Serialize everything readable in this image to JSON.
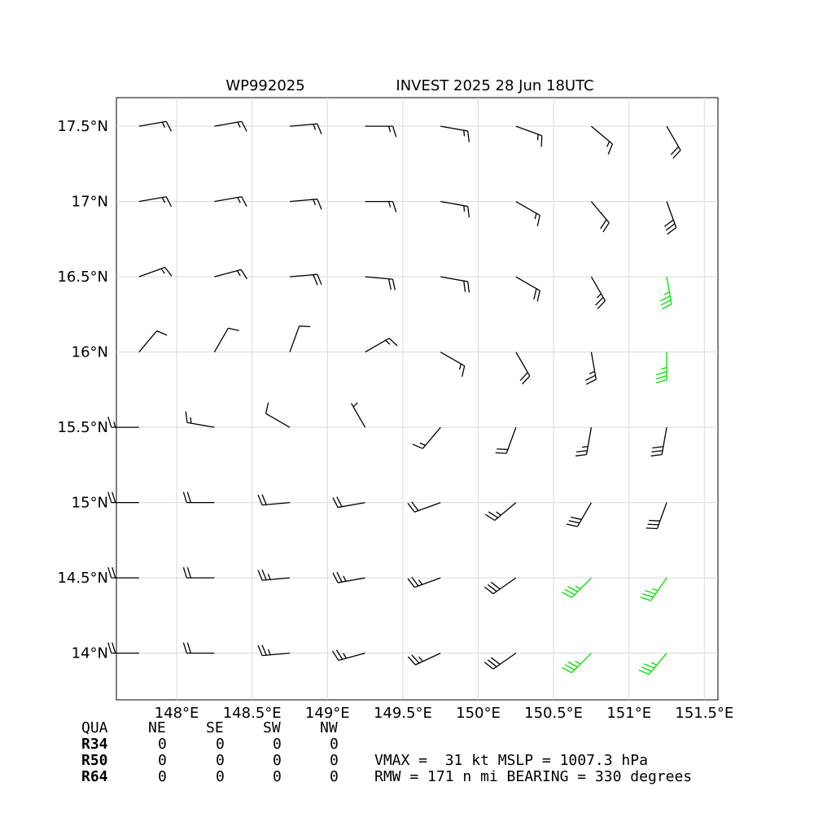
{
  "chart_data": {
    "type": "barbs",
    "title_left": "WP992025",
    "title_right": "INVEST 2025 28 Jun 18UTC",
    "xlim": [
      147.6,
      151.59
    ],
    "ylim": [
      13.69,
      17.69
    ],
    "xticks": [
      {
        "value": 148,
        "label": "148°E"
      },
      {
        "value": 148.5,
        "label": "148.5°E"
      },
      {
        "value": 149,
        "label": "149°E"
      },
      {
        "value": 149.5,
        "label": "149.5°E"
      },
      {
        "value": 150,
        "label": "150°E"
      },
      {
        "value": 150.5,
        "label": "150.5°E"
      },
      {
        "value": 151,
        "label": "151°E"
      },
      {
        "value": 151.5,
        "label": "151.5°E"
      }
    ],
    "yticks": [
      {
        "value": 14,
        "label": "14°N"
      },
      {
        "value": 14.5,
        "label": "14.5°N"
      },
      {
        "value": 15,
        "label": "15°N"
      },
      {
        "value": 15.5,
        "label": "15.5°N"
      },
      {
        "value": 16,
        "label": "16°N"
      },
      {
        "value": 16.5,
        "label": "16.5°N"
      },
      {
        "value": 17,
        "label": "17°N"
      },
      {
        "value": 17.5,
        "label": "17.5°N"
      }
    ],
    "grid": true,
    "lons": [
      147.75,
      148.25,
      148.75,
      149.25,
      149.75,
      150.25,
      150.75,
      151.25
    ],
    "lats": [
      17.5,
      17.0,
      16.5,
      16.0,
      15.5,
      15.0,
      14.5,
      14.0
    ],
    "speed": [
      [
        15,
        15,
        15,
        15,
        15,
        15,
        15,
        20
      ],
      [
        15,
        15,
        15,
        15,
        15,
        15,
        20,
        30
      ],
      [
        15,
        15,
        20,
        20,
        20,
        20,
        25,
        35
      ],
      [
        10,
        10,
        10,
        15,
        15,
        20,
        25,
        35
      ],
      [
        15,
        15,
        10,
        5,
        15,
        20,
        25,
        30
      ],
      [
        20,
        20,
        20,
        20,
        20,
        25,
        30,
        30
      ],
      [
        20,
        20,
        25,
        25,
        25,
        30,
        35,
        35
      ],
      [
        20,
        20,
        25,
        25,
        25,
        30,
        35,
        35
      ]
    ],
    "direction": [
      [
        80,
        80,
        85,
        90,
        100,
        110,
        130,
        150
      ],
      [
        80,
        80,
        85,
        90,
        100,
        120,
        140,
        160
      ],
      [
        70,
        75,
        85,
        95,
        100,
        120,
        150,
        170
      ],
      [
        40,
        30,
        20,
        60,
        120,
        150,
        170,
        180
      ],
      [
        270,
        280,
        300,
        330,
        220,
        200,
        190,
        190
      ],
      [
        270,
        270,
        265,
        260,
        250,
        230,
        210,
        200
      ],
      [
        270,
        270,
        265,
        260,
        250,
        235,
        225,
        215
      ],
      [
        270,
        270,
        265,
        255,
        245,
        235,
        225,
        220
      ]
    ],
    "colors": {
      "normal": "#000000",
      "strong": "#00e000"
    },
    "strong_threshold": 34,
    "table": {
      "header": [
        "QUA",
        "NE",
        "SE",
        "SW",
        "NW"
      ],
      "rows": [
        [
          "R34",
          0,
          0,
          0,
          0
        ],
        [
          "R50",
          0,
          0,
          0,
          0
        ],
        [
          "R64",
          0,
          0,
          0,
          0
        ]
      ]
    },
    "summary": [
      "VMAX =  31 kt MSLP = 1007.3 hPa",
      "RMW = 171 n mi BEARING = 330 degrees"
    ]
  }
}
